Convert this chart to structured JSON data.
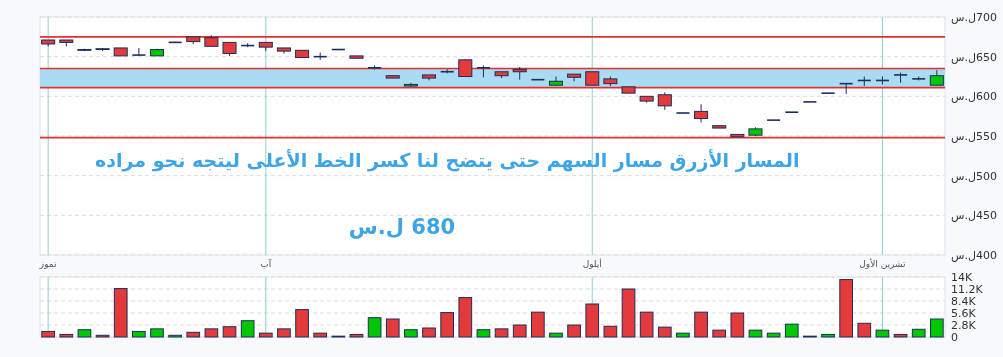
{
  "chart_data": [
    {
      "type": "candlestick",
      "categories": [
        "تموز",
        null,
        null,
        null,
        null,
        null,
        null,
        null,
        null,
        null,
        null,
        null,
        "آب",
        null,
        null,
        null,
        null,
        null,
        null,
        null,
        null,
        null,
        null,
        null,
        null,
        null,
        null,
        null,
        null,
        null,
        "أيلول",
        null,
        null,
        null,
        null,
        null,
        null,
        null,
        null,
        null,
        null,
        null,
        null,
        null,
        null,
        null,
        "تشرين الأول",
        null,
        null,
        null
      ],
      "ohlc": [
        [
          671,
          671,
          663,
          666
        ],
        [
          671,
          671,
          663,
          668
        ],
        [
          659,
          660,
          657,
          658
        ],
        [
          660,
          661,
          657,
          659
        ],
        [
          661,
          661,
          651,
          651
        ],
        [
          652,
          661,
          652,
          652
        ],
        [
          651,
          660,
          651,
          659
        ],
        [
          668,
          669,
          668,
          668
        ],
        [
          675,
          675,
          666,
          669
        ],
        [
          674,
          677,
          663,
          663
        ],
        [
          668,
          668,
          651,
          654
        ],
        [
          664,
          667,
          662,
          664
        ],
        [
          668,
          668,
          657,
          662
        ],
        [
          661,
          661,
          654,
          657
        ],
        [
          658,
          658,
          649,
          649
        ],
        [
          650,
          655,
          646,
          650
        ],
        [
          659,
          659,
          659,
          659
        ],
        [
          651,
          651,
          648,
          648
        ],
        [
          636,
          639,
          634,
          636
        ],
        [
          626,
          626,
          623,
          623
        ],
        [
          613,
          617,
          612,
          615
        ],
        [
          627,
          627,
          620,
          623
        ],
        [
          631,
          634,
          629,
          631
        ],
        [
          646,
          647,
          625,
          625
        ],
        [
          636,
          639,
          624,
          636
        ],
        [
          631,
          631,
          623,
          626
        ],
        [
          634,
          637,
          621,
          631
        ],
        [
          621,
          621,
          621,
          621
        ],
        [
          614,
          625,
          614,
          619
        ],
        [
          628,
          628,
          619,
          624
        ],
        [
          631,
          631,
          614,
          614
        ],
        [
          622,
          625,
          613,
          616
        ],
        [
          612,
          612,
          604,
          604
        ],
        [
          600,
          600,
          592,
          594
        ],
        [
          602,
          605,
          583,
          588
        ],
        [
          579,
          579,
          579,
          579
        ],
        [
          581,
          590,
          567,
          572
        ],
        [
          563,
          563,
          560,
          560
        ],
        [
          552,
          552,
          549,
          549
        ],
        [
          551,
          561,
          550,
          559
        ],
        [
          570,
          570,
          570,
          570
        ],
        [
          580,
          580,
          580,
          580
        ],
        [
          593,
          593,
          593,
          593
        ],
        [
          604,
          604,
          604,
          604
        ],
        [
          616,
          616,
          603,
          616
        ],
        [
          620,
          625,
          613,
          620
        ],
        [
          620,
          625,
          615,
          620
        ],
        [
          627,
          630,
          617,
          627
        ],
        [
          622,
          625,
          620,
          622
        ],
        [
          614,
          633,
          614,
          626
        ]
      ],
      "colors": [
        "#e33b3b",
        "#e33b3b",
        "#1f2d5c",
        "#e33b3b",
        "#e33b3b",
        "#1f2d5c",
        "#00c800",
        "#1f2d5c",
        "#e33b3b",
        "#e33b3b",
        "#e33b3b",
        "#1f2d5c",
        "#e33b3b",
        "#e33b3b",
        "#e33b3b",
        "#1f2d5c",
        "#1f2d5c",
        "#e33b3b",
        "#1f2d5c",
        "#e33b3b",
        "#00c800",
        "#e33b3b",
        "#1f2d5c",
        "#e33b3b",
        "#1f2d5c",
        "#e33b3b",
        "#e33b3b",
        "#1f2d5c",
        "#00c800",
        "#e33b3b",
        "#e33b3b",
        "#e33b3b",
        "#e33b3b",
        "#e33b3b",
        "#e33b3b",
        "#1f2d5c",
        "#e33b3b",
        "#e33b3b",
        "#e33b3b",
        "#00c800",
        "#1f2d5c",
        "#1f2d5c",
        "#1f2d5c",
        "#1f2d5c",
        "#1f2d5c",
        "#1f2d5c",
        "#1f2d5c",
        "#1f2d5c",
        "#1f2d5c",
        "#00c800"
      ],
      "ylim": [
        400,
        700
      ],
      "yticks": [
        {
          "value": 400,
          "label": "400ل.س"
        },
        {
          "value": 450,
          "label": "450ل.س"
        },
        {
          "value": 500,
          "label": "500ل.س"
        },
        {
          "value": 550,
          "label": "550ل.س"
        },
        {
          "value": 600,
          "label": "600ل.س"
        },
        {
          "value": 650,
          "label": "650ل.س"
        },
        {
          "value": 700,
          "label": "700ل.س"
        }
      ],
      "grid": true,
      "bands": [
        {
          "axis": "y",
          "from": 611,
          "to": 635,
          "color": "#a9dcf3"
        }
      ],
      "ref_lines": [
        {
          "axis": "y",
          "value": 675,
          "color": "#e03030"
        },
        {
          "axis": "y",
          "value": 635,
          "color": "#e03030"
        },
        {
          "axis": "y",
          "value": 611,
          "color": "#e03030"
        },
        {
          "axis": "y",
          "value": 548,
          "color": "#e03030"
        }
      ],
      "annotations": [
        "المسار الأزرق مسار السهم حتى يتضح لنا كسر الخط الأعلى ليتجه نحو مراده",
        "680 ل.س"
      ]
    },
    {
      "type": "bar",
      "categories": [
        null,
        null,
        null,
        null,
        null,
        null,
        null,
        null,
        null,
        null,
        null,
        null,
        null,
        null,
        null,
        null,
        null,
        null,
        null,
        null,
        null,
        null,
        null,
        null,
        null,
        null,
        null,
        null,
        null,
        null,
        null,
        null,
        null,
        null,
        null,
        null,
        null,
        null,
        null,
        null,
        null,
        null,
        null,
        null,
        null,
        null,
        null,
        null,
        null,
        null
      ],
      "values": [
        1300,
        600,
        1700,
        400,
        11300,
        1300,
        1900,
        400,
        1100,
        1900,
        2400,
        3800,
        900,
        1900,
        6400,
        900,
        200,
        600,
        4500,
        4200,
        1700,
        2100,
        5700,
        9200,
        1700,
        1900,
        2800,
        5800,
        900,
        2800,
        7700,
        2500,
        11200,
        5800,
        2300,
        900,
        5800,
        1600,
        5600,
        1600,
        900,
        3000,
        200,
        600,
        13400,
        3200,
        1600,
        600,
        1800,
        4200
      ],
      "colors": [
        "#e33b3b",
        "#e33b3b",
        "#00c800",
        "#e33b3b",
        "#e33b3b",
        "#00c800",
        "#00c800",
        "#00c800",
        "#e33b3b",
        "#e33b3b",
        "#e33b3b",
        "#00c800",
        "#e33b3b",
        "#e33b3b",
        "#e33b3b",
        "#e33b3b",
        "#e33b3b",
        "#e33b3b",
        "#00c800",
        "#e33b3b",
        "#00c800",
        "#e33b3b",
        "#e33b3b",
        "#e33b3b",
        "#00c800",
        "#e33b3b",
        "#e33b3b",
        "#e33b3b",
        "#00c800",
        "#e33b3b",
        "#e33b3b",
        "#e33b3b",
        "#e33b3b",
        "#e33b3b",
        "#e33b3b",
        "#00c800",
        "#e33b3b",
        "#e33b3b",
        "#e33b3b",
        "#00c800",
        "#00c800",
        "#00c800",
        "#1f2d5c",
        "#00c800",
        "#e33b3b",
        "#e33b3b",
        "#00c800",
        "#e33b3b",
        "#00c800",
        "#00c800"
      ],
      "ylim": [
        0,
        14000
      ],
      "yticks": [
        0,
        {
          "value": 2800,
          "label": "2.8K"
        },
        {
          "value": 5600,
          "label": "5.6K"
        },
        {
          "value": 8400,
          "label": "8.4K"
        },
        {
          "value": 11200,
          "label": "11.2K"
        },
        {
          "value": 14000,
          "label": "14K"
        }
      ],
      "grid": true,
      "tick_labels": "y"
    }
  ]
}
